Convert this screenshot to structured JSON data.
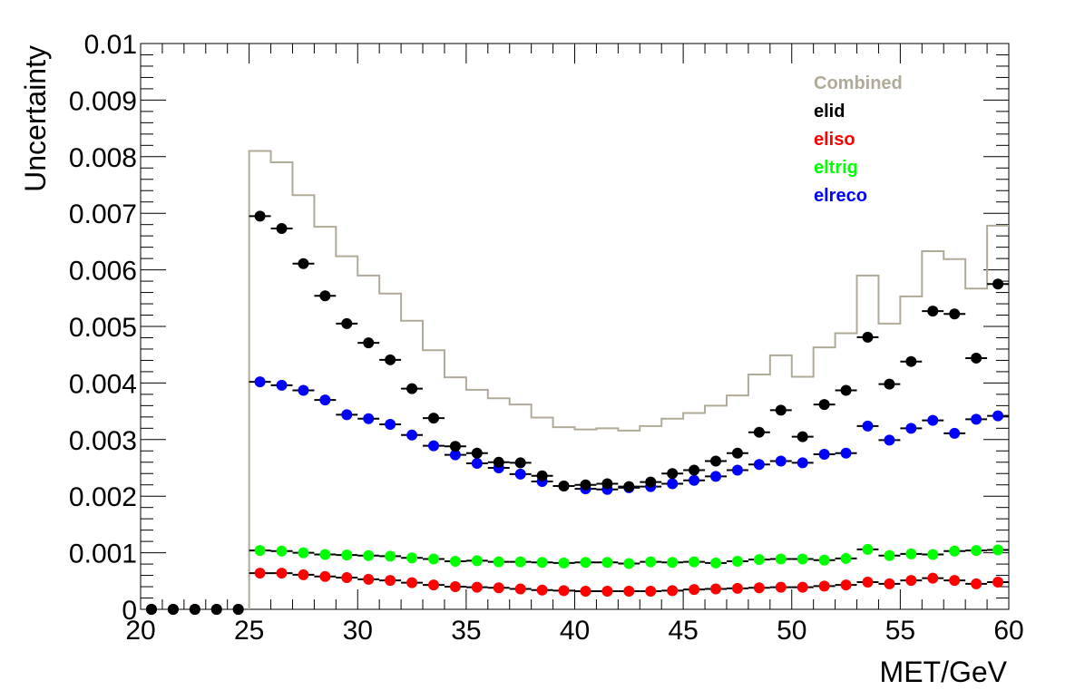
{
  "chart_data": {
    "type": "scatter",
    "title": "",
    "xlabel": "MET/GeV",
    "ylabel": "Uncertainty",
    "xlim": [
      20,
      60
    ],
    "ylim": [
      0,
      0.01
    ],
    "x_ticks": [
      "20",
      "25",
      "30",
      "35",
      "40",
      "45",
      "50",
      "55",
      "60"
    ],
    "y_ticks": [
      "0",
      "0.001",
      "0.002",
      "0.003",
      "0.004",
      "0.005",
      "0.006",
      "0.007",
      "0.008",
      "0.009",
      "0.01"
    ],
    "grid": false,
    "legend_position": "top-right",
    "bin_width": 1,
    "x": [
      20.5,
      21.5,
      22.5,
      23.5,
      24.5,
      25.5,
      26.5,
      27.5,
      28.5,
      29.5,
      30.5,
      31.5,
      32.5,
      33.5,
      34.5,
      35.5,
      36.5,
      37.5,
      38.5,
      39.5,
      40.5,
      41.5,
      42.5,
      43.5,
      44.5,
      45.5,
      46.5,
      47.5,
      48.5,
      49.5,
      50.5,
      51.5,
      52.5,
      53.5,
      54.5,
      55.5,
      56.5,
      57.5,
      58.5,
      59.5
    ],
    "series": [
      {
        "name": "Combined",
        "style": "step",
        "color": "#b0aa98",
        "values": [
          0,
          0,
          0,
          0,
          0,
          0.0081,
          0.0079,
          0.00732,
          0.00676,
          0.00624,
          0.0059,
          0.00558,
          0.0051,
          0.00458,
          0.0041,
          0.00388,
          0.00373,
          0.00362,
          0.00339,
          0.00322,
          0.00318,
          0.0032,
          0.00316,
          0.00324,
          0.00337,
          0.00347,
          0.0036,
          0.00378,
          0.00415,
          0.00449,
          0.00411,
          0.00463,
          0.00488,
          0.0059,
          0.00505,
          0.00553,
          0.00633,
          0.00619,
          0.00567,
          0.00678
        ]
      },
      {
        "name": "elid",
        "style": "marker",
        "color": "#000000",
        "values": [
          0,
          0,
          0,
          0,
          0,
          0.00695,
          0.00673,
          0.00611,
          0.00554,
          0.00505,
          0.00471,
          0.00441,
          0.0039,
          0.00338,
          0.00288,
          0.00276,
          0.0026,
          0.00259,
          0.00236,
          0.00218,
          0.0022,
          0.00222,
          0.00217,
          0.00225,
          0.0024,
          0.00246,
          0.00262,
          0.00276,
          0.00313,
          0.00352,
          0.00305,
          0.00362,
          0.00387,
          0.00481,
          0.00398,
          0.00438,
          0.00527,
          0.00522,
          0.00444,
          0.00575
        ]
      },
      {
        "name": "eliso",
        "style": "marker",
        "color": "#ff0000",
        "values": [
          0,
          0,
          0,
          0,
          0,
          0.00064,
          0.00064,
          0.00061,
          0.00058,
          0.00056,
          0.00053,
          0.00051,
          0.00047,
          0.00043,
          0.0004,
          0.00039,
          0.00038,
          0.00036,
          0.00034,
          0.00033,
          0.00032,
          0.00032,
          0.00032,
          0.00032,
          0.00033,
          0.00035,
          0.00036,
          0.00037,
          0.00038,
          0.00039,
          0.00039,
          0.00041,
          0.00043,
          0.00048,
          0.00045,
          0.00051,
          0.00055,
          0.00051,
          0.00045,
          0.00048
        ]
      },
      {
        "name": "eltrig",
        "style": "marker",
        "color": "#00ff00",
        "values": [
          0,
          0,
          0,
          0,
          0,
          0.00104,
          0.00103,
          0.001,
          0.00097,
          0.00096,
          0.00095,
          0.00094,
          0.00091,
          0.00089,
          0.00085,
          0.00086,
          0.00084,
          0.00084,
          0.00083,
          0.00082,
          0.00083,
          0.00083,
          0.00081,
          0.00084,
          0.00083,
          0.00084,
          0.00082,
          0.00085,
          0.00088,
          0.00089,
          0.00089,
          0.00087,
          0.0009,
          0.00106,
          0.00095,
          0.00098,
          0.00097,
          0.00103,
          0.00104,
          0.00105
        ]
      },
      {
        "name": "elreco",
        "style": "marker",
        "color": "#0000ff",
        "values": [
          0,
          0,
          0,
          0,
          0,
          0.00402,
          0.00396,
          0.00387,
          0.0037,
          0.00344,
          0.00337,
          0.00327,
          0.00308,
          0.00289,
          0.00273,
          0.00258,
          0.0025,
          0.00239,
          0.00226,
          0.00218,
          0.00213,
          0.00212,
          0.00215,
          0.00217,
          0.00222,
          0.00228,
          0.00235,
          0.00246,
          0.00256,
          0.00262,
          0.00259,
          0.00274,
          0.00276,
          0.00324,
          0.00299,
          0.0032,
          0.00334,
          0.00311,
          0.00336,
          0.00342
        ]
      }
    ]
  }
}
